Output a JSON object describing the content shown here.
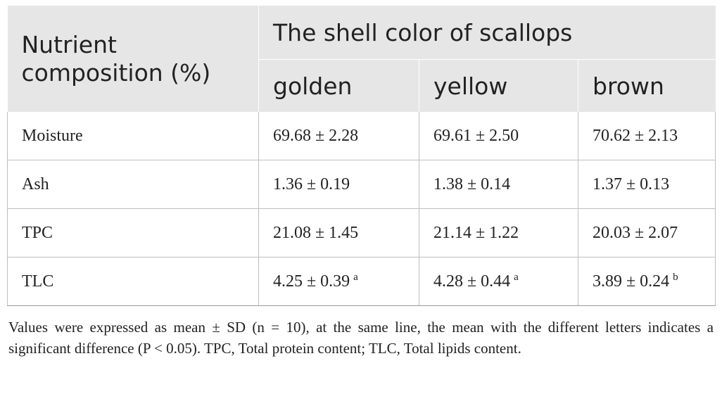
{
  "table": {
    "stub_header": "Nutrient composition (%)",
    "group_header": "The shell color of scallops",
    "columns": [
      "golden",
      "yellow",
      "brown"
    ],
    "rows": [
      {
        "label": "Moisture",
        "cells": [
          {
            "value": "69.68 ± 2.28",
            "mark": ""
          },
          {
            "value": "69.61 ± 2.50",
            "mark": ""
          },
          {
            "value": "70.62 ± 2.13",
            "mark": ""
          }
        ]
      },
      {
        "label": "Ash",
        "cells": [
          {
            "value": "1.36 ± 0.19",
            "mark": ""
          },
          {
            "value": "1.38 ± 0.14",
            "mark": ""
          },
          {
            "value": "1.37 ± 0.13",
            "mark": ""
          }
        ]
      },
      {
        "label": "TPC",
        "cells": [
          {
            "value": "21.08 ± 1.45",
            "mark": ""
          },
          {
            "value": "21.14 ± 1.22",
            "mark": ""
          },
          {
            "value": "20.03 ± 2.07",
            "mark": ""
          }
        ]
      },
      {
        "label": "TLC",
        "cells": [
          {
            "value": "4.25 ± 0.39",
            "mark": "a"
          },
          {
            "value": "4.28 ± 0.44",
            "mark": "a"
          },
          {
            "value": "3.89 ± 0.24",
            "mark": "b"
          }
        ]
      }
    ]
  },
  "footnote": "Values were expressed as mean ± SD (n = 10), at the same line, the mean with the different letters indicates a significant difference (P < 0.05). TPC, Total protein content; TLC, Total lipids content."
}
